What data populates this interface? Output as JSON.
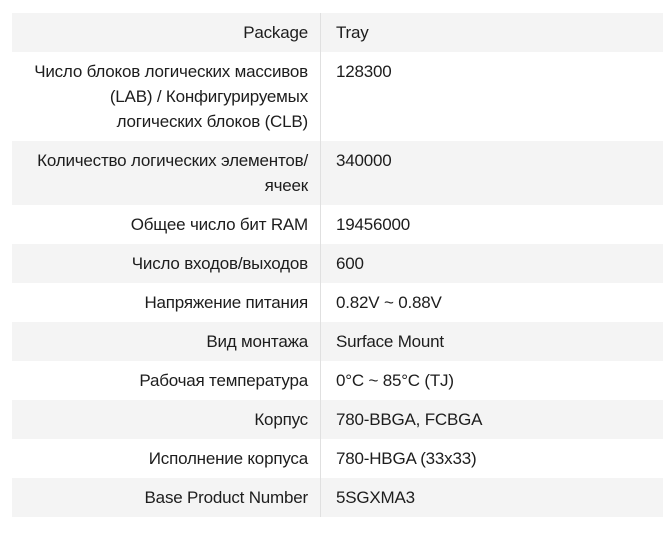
{
  "colors": {
    "page_background": "#ffffff",
    "row_stripe": "#f4f4f4",
    "column_divider": "#e0e0e0",
    "text": "#1d1d1d"
  },
  "spec_table": {
    "rows": [
      {
        "label": "Package",
        "value": "Tray"
      },
      {
        "label": "Число блоков логических массивов (LAB) / Конфигурируемых логических блоков (CLB)",
        "value": "128300"
      },
      {
        "label": "Количество логических элементов/ячеек",
        "value": "340000"
      },
      {
        "label": "Общее число бит RAM",
        "value": "19456000"
      },
      {
        "label": "Число входов/выходов",
        "value": "600"
      },
      {
        "label": "Напряжение питания",
        "value": "0.82V ~ 0.88V"
      },
      {
        "label": "Вид монтажа",
        "value": "Surface Mount"
      },
      {
        "label": "Рабочая температура",
        "value": "0°C ~ 85°C (TJ)"
      },
      {
        "label": "Корпус",
        "value": "780-BBGA, FCBGA"
      },
      {
        "label": "Исполнение корпуса",
        "value": "780-HBGA (33x33)"
      },
      {
        "label": "Base Product Number",
        "value": "5SGXMA3"
      }
    ]
  }
}
